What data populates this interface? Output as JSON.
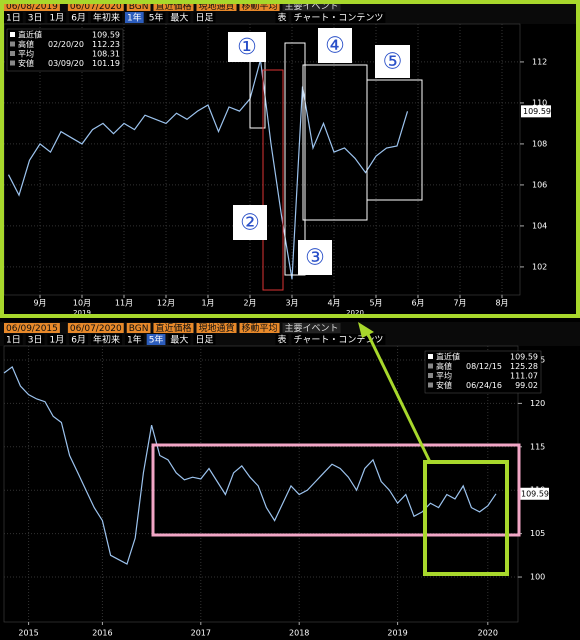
{
  "chart_data": [
    {
      "type": "line",
      "toolbar": [
        "06/08/2019",
        "06/07/2020",
        "BGN",
        "直近価格",
        "現地通貨",
        "移動平均",
        "主要イベント"
      ],
      "periods": [
        "1日",
        "3日",
        "1月",
        "6月",
        "年初来",
        "1年",
        "5年",
        "最大",
        "日足",
        "表",
        "チャート・コンテンツ"
      ],
      "active_period": "1年",
      "legend": [
        {
          "label": "直近値",
          "value": 109.59
        },
        {
          "label": "高値",
          "date": "02/20/20",
          "value": 112.23
        },
        {
          "label": "平均",
          "value": 108.31
        },
        {
          "label": "安値",
          "date": "03/09/20",
          "value": 101.19
        }
      ],
      "categories": [
        null,
        null,
        null,
        "9月",
        null,
        null,
        null,
        "10月",
        null,
        null,
        null,
        "11月",
        null,
        null,
        null,
        "12月",
        null,
        null,
        null,
        "1月",
        null,
        null,
        null,
        "2月",
        null,
        null,
        null,
        "3月",
        null,
        null,
        null,
        "4月",
        null,
        null,
        null,
        "5月",
        null,
        null,
        null,
        "6月",
        null,
        null,
        null,
        "7月",
        null,
        null,
        null,
        "8月",
        null,
        null
      ],
      "year_categories": [
        null,
        null,
        null,
        null,
        null,
        null,
        null,
        "2019",
        null,
        null,
        null,
        null,
        null,
        null,
        null,
        null,
        null,
        null,
        null,
        null,
        null,
        null,
        null,
        null,
        null,
        null,
        null,
        null,
        null,
        null,
        null,
        null,
        null,
        "2020",
        null,
        null,
        null,
        null,
        null,
        null,
        null,
        null,
        null,
        null,
        null,
        null,
        null,
        null,
        null,
        null
      ],
      "values": [
        106.5,
        105.5,
        107.2,
        108.0,
        107.6,
        108.6,
        108.3,
        108.0,
        108.7,
        109.0,
        108.5,
        109.0,
        108.7,
        109.4,
        109.2,
        109.0,
        109.5,
        109.2,
        109.6,
        109.9,
        108.6,
        109.8,
        109.6,
        110.2,
        112.1,
        108.0,
        104.5,
        101.4,
        110.8,
        107.8,
        109.0,
        107.6,
        107.8,
        107.3,
        106.6,
        107.4,
        107.8,
        107.9,
        109.59,
        null,
        null,
        null,
        null,
        null,
        null,
        null,
        null,
        null,
        null,
        null
      ],
      "color": "#9cc3ee",
      "ylim": [
        100.63,
        113.85
      ],
      "yticks": [
        102,
        104,
        106,
        108,
        110,
        112
      ],
      "grid": true,
      "annotations": [
        "①",
        "②",
        "③",
        "④",
        "⑤"
      ]
    },
    {
      "type": "line",
      "toolbar": [
        "06/09/2015",
        "06/07/2020",
        "BGN",
        "直近価格",
        "現地通貨",
        "移動平均",
        "主要イベント"
      ],
      "periods": [
        "1日",
        "3日",
        "1月",
        "6月",
        "年初来",
        "1年",
        "5年",
        "最大",
        "日足",
        "表",
        "チャート・コンテンツ"
      ],
      "active_period": "5年",
      "legend": [
        {
          "label": "直近値",
          "value": 109.59
        },
        {
          "label": "高値",
          "date": "08/12/15",
          "value": 125.28
        },
        {
          "label": "平均",
          "value": 111.07
        },
        {
          "label": "安値",
          "date": "06/24/16",
          "value": 99.02
        }
      ],
      "categories": [
        null,
        null,
        null,
        "2015",
        null,
        null,
        null,
        null,
        null,
        null,
        null,
        null,
        "2016",
        null,
        null,
        null,
        null,
        null,
        null,
        null,
        null,
        null,
        null,
        null,
        "2017",
        null,
        null,
        null,
        null,
        null,
        null,
        null,
        null,
        null,
        null,
        null,
        "2018",
        null,
        null,
        null,
        null,
        null,
        null,
        null,
        null,
        null,
        null,
        null,
        "2019",
        null,
        null,
        null,
        null,
        null,
        null,
        null,
        null,
        null,
        null,
        "2020",
        null
      ],
      "values": [
        123.5,
        124.2,
        122.0,
        121.0,
        120.5,
        120.2,
        118.5,
        117.8,
        114.0,
        112.0,
        110.0,
        108.0,
        106.5,
        102.5,
        102.0,
        101.5,
        104.5,
        112.0,
        117.5,
        114.0,
        113.5,
        112.0,
        111.2,
        111.5,
        111.3,
        112.5,
        111.0,
        109.5,
        112.0,
        112.8,
        111.5,
        110.5,
        108.0,
        106.5,
        108.5,
        110.5,
        109.5,
        110.0,
        111.0,
        112.0,
        113.0,
        112.5,
        111.5,
        110.0,
        112.5,
        113.5,
        111.0,
        110.0,
        108.5,
        109.5,
        107.0,
        107.5,
        108.5,
        108.0,
        109.5,
        109.0,
        110.5,
        108.0,
        107.5,
        108.2,
        109.59
      ],
      "color": "#9cc3ee",
      "ylim": [
        94.82,
        126.61
      ],
      "yticks": [
        100,
        105,
        110,
        115,
        120,
        125
      ],
      "grid": true
    }
  ]
}
